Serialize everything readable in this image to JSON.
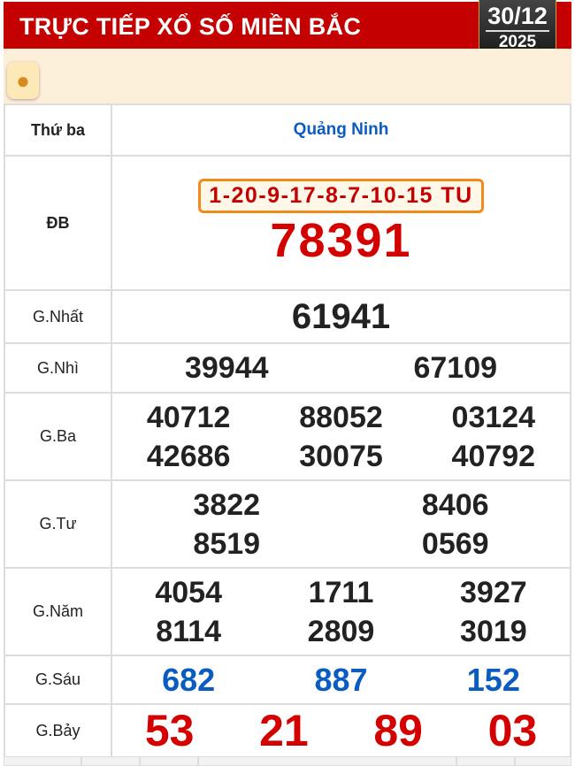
{
  "header": {
    "title": "TRỰC TIẾP XỔ SỐ MIỀN BẮC",
    "date_day": "30/12",
    "date_year": "2025"
  },
  "logo_icon": "lottery-balls-icon",
  "table": {
    "day": "Thứ ba",
    "province": "Quảng Ninh",
    "special": {
      "label": "ĐB",
      "codes": "1-20-9-17-8-7-10-15 TU",
      "number": "78391"
    },
    "first": {
      "label": "G.Nhất",
      "numbers": [
        "61941"
      ]
    },
    "second": {
      "label": "G.Nhì",
      "numbers": [
        "39944",
        "67109"
      ]
    },
    "third": {
      "label": "G.Ba",
      "numbers": [
        "40712",
        "88052",
        "03124",
        "42686",
        "30075",
        "40792"
      ]
    },
    "fourth": {
      "label": "G.Tư",
      "numbers": [
        "3822",
        "8406",
        "8519",
        "0569"
      ]
    },
    "fifth": {
      "label": "G.Năm",
      "numbers": [
        "4054",
        "1711",
        "3927",
        "8114",
        "2809",
        "3019"
      ]
    },
    "sixth": {
      "label": "G.Sáu",
      "numbers": [
        "682",
        "887",
        "152"
      ]
    },
    "seventh": {
      "label": "G.Bảy",
      "numbers": [
        "53",
        "21",
        "89",
        "03"
      ]
    }
  },
  "colors": {
    "header": "#c40000",
    "special": "#d40000",
    "blue": "#0b5cc0",
    "code_border": "#f08a1a"
  }
}
